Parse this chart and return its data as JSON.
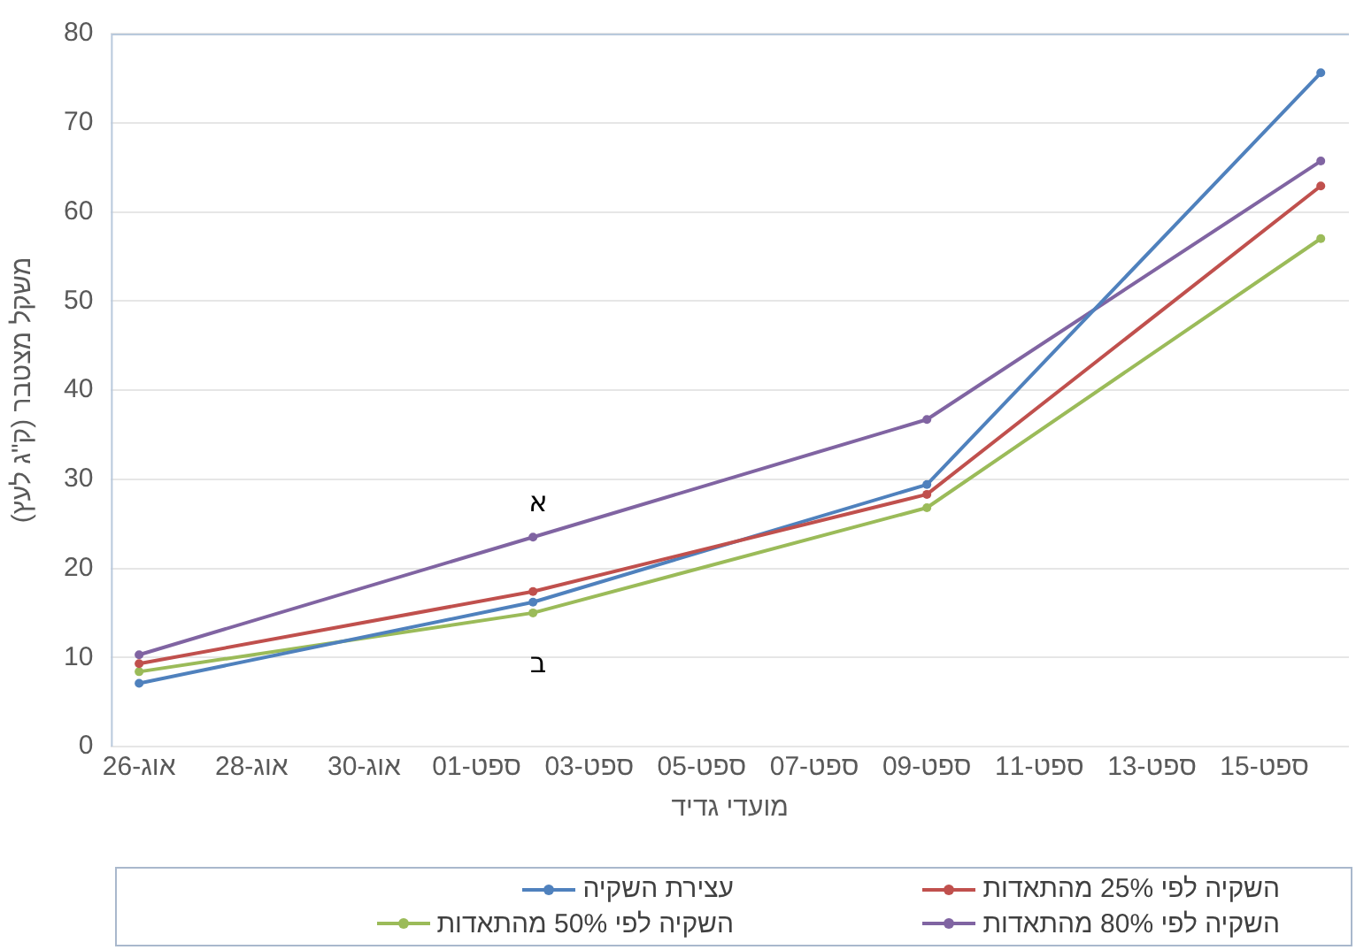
{
  "chart_data": {
    "type": "line",
    "xlabel": "מועדי גדיד",
    "ylabel": "משקל מצטבר (ק\"ג לעץ)",
    "x": [
      "--08-26",
      "--09-02",
      "--09-09",
      "--09-16"
    ],
    "xlim": [
      "--08-25T12:00",
      "--09-16T12:00"
    ],
    "xticks": [
      {
        "value": "--08-26",
        "label": "26-אוג"
      },
      {
        "value": "--08-28",
        "label": "28-אוג"
      },
      {
        "value": "--08-30",
        "label": "30-אוג"
      },
      {
        "value": "--09-01",
        "label": "01-ספט"
      },
      {
        "value": "--09-03",
        "label": "03-ספט"
      },
      {
        "value": "--09-05",
        "label": "05-ספט"
      },
      {
        "value": "--09-07",
        "label": "07-ספט"
      },
      {
        "value": "--09-09",
        "label": "09-ספט"
      },
      {
        "value": "--09-11",
        "label": "11-ספט"
      },
      {
        "value": "--09-13",
        "label": "13-ספט"
      },
      {
        "value": "--09-15",
        "label": "15-ספט"
      }
    ],
    "ylim": [
      0,
      80
    ],
    "yticks": [
      0,
      10,
      20,
      30,
      40,
      50,
      60,
      70,
      80
    ],
    "series": [
      {
        "name": "השקיה לפי 25% מהתאדות",
        "color": "#c0504d",
        "values": [
          9.3,
          17.4,
          28.3,
          62.9
        ]
      },
      {
        "name": "עצירת השקיה",
        "color": "#4f81bd",
        "values": [
          7.1,
          16.2,
          29.4,
          75.6
        ]
      },
      {
        "name": "השקיה לפי 80% מהתאדות",
        "color": "#8064a2",
        "values": [
          10.3,
          23.5,
          36.7,
          65.7
        ]
      },
      {
        "name": "השקיה לפי 50% מהתאדות",
        "color": "#9bbb59",
        "values": [
          8.4,
          15,
          26.8,
          57
        ]
      }
    ],
    "annotations": [
      "א",
      "ב"
    ],
    "grid": "y",
    "legend": "bottom",
    "marker": "circle",
    "line_style": "solid"
  }
}
